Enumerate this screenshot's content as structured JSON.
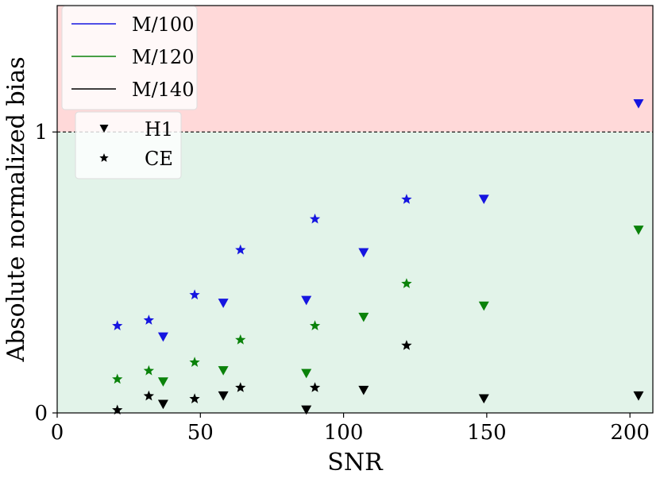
{
  "chart_data": {
    "type": "scatter",
    "title": "",
    "xlabel": "SNR",
    "ylabel": "Absolute normalized bias",
    "xlim": [
      0,
      208
    ],
    "ylim": [
      0,
      1.45
    ],
    "xticks": [
      0,
      50,
      100,
      150,
      200
    ],
    "yticks": [
      0,
      1
    ],
    "reference_line": {
      "y": 1,
      "style": "dashed",
      "color": "#000000"
    },
    "regions": [
      {
        "from": 1,
        "to": 1.45,
        "color": "#ffd9d9"
      },
      {
        "from": 0,
        "to": 1,
        "color": "#e2f3e9"
      }
    ],
    "grid": false,
    "legend_position": "top-left",
    "colors": {
      "M/100": "#1515e0",
      "M/120": "#0a820a",
      "M/140": "#000000"
    },
    "legend_color": [
      {
        "name": "M/100",
        "color": "#1515e0"
      },
      {
        "name": "M/120",
        "color": "#0a820a"
      },
      {
        "name": "M/140",
        "color": "#000000"
      }
    ],
    "legend_marker": [
      {
        "name": "H1",
        "marker": "triangle-down"
      },
      {
        "name": "CE",
        "marker": "star"
      }
    ],
    "series": [
      {
        "mass": "M/100",
        "method": "H1",
        "marker": "triangle-down",
        "color": "#1515e0",
        "x": [
          37,
          58,
          87,
          107,
          149,
          203
        ],
        "y": [
          0.27,
          0.39,
          0.4,
          0.57,
          0.76,
          1.1
        ]
      },
      {
        "mass": "M/100",
        "method": "CE",
        "marker": "star",
        "color": "#1515e0",
        "x": [
          21,
          32,
          48,
          64,
          90,
          122
        ],
        "y": [
          0.31,
          0.33,
          0.42,
          0.58,
          0.69,
          0.76
        ]
      },
      {
        "mass": "M/120",
        "method": "H1",
        "marker": "triangle-down",
        "color": "#0a820a",
        "x": [
          37,
          58,
          87,
          107,
          149,
          203
        ],
        "y": [
          0.11,
          0.15,
          0.14,
          0.34,
          0.38,
          0.65
        ]
      },
      {
        "mass": "M/120",
        "method": "CE",
        "marker": "star",
        "color": "#0a820a",
        "x": [
          21,
          32,
          48,
          64,
          90,
          122
        ],
        "y": [
          0.12,
          0.15,
          0.18,
          0.26,
          0.31,
          0.46
        ]
      },
      {
        "mass": "M/140",
        "method": "H1",
        "marker": "triangle-down",
        "color": "#000000",
        "x": [
          37,
          58,
          87,
          107,
          149,
          203
        ],
        "y": [
          0.03,
          0.06,
          0.01,
          0.08,
          0.05,
          0.06
        ]
      },
      {
        "mass": "M/140",
        "method": "CE",
        "marker": "star",
        "color": "#000000",
        "x": [
          21,
          32,
          48,
          64,
          90,
          122
        ],
        "y": [
          0.01,
          0.06,
          0.05,
          0.09,
          0.09,
          0.24
        ]
      }
    ]
  }
}
